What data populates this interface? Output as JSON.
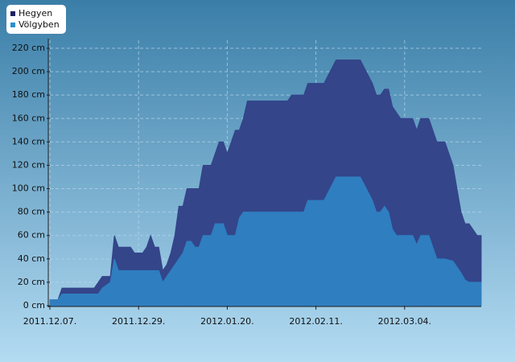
{
  "chart_data": {
    "type": "area",
    "x": [
      "2011-12-07",
      "2011-12-09",
      "2011-12-10",
      "2011-12-18",
      "2011-12-19",
      "2011-12-20",
      "2011-12-22",
      "2011-12-23",
      "2011-12-24",
      "2011-12-27",
      "2011-12-28",
      "2011-12-30",
      "2011-12-31",
      "2012-01-01",
      "2012-01-02",
      "2012-01-03",
      "2012-01-04",
      "2012-01-05",
      "2012-01-06",
      "2012-01-07",
      "2012-01-08",
      "2012-01-09",
      "2012-01-10",
      "2012-01-11",
      "2012-01-12",
      "2012-01-13",
      "2012-01-14",
      "2012-01-16",
      "2012-01-17",
      "2012-01-18",
      "2012-01-19",
      "2012-01-20",
      "2012-01-22",
      "2012-01-23",
      "2012-01-24",
      "2012-01-25",
      "2012-02-04",
      "2012-02-05",
      "2012-02-08",
      "2012-02-09",
      "2012-02-13",
      "2012-02-16",
      "2012-02-22",
      "2012-02-25",
      "2012-02-26",
      "2012-02-27",
      "2012-02-28",
      "2012-02-29",
      "2012-03-01",
      "2012-03-02",
      "2012-03-03",
      "2012-03-06",
      "2012-03-07",
      "2012-03-08",
      "2012-03-10",
      "2012-03-12",
      "2012-03-14",
      "2012-03-16",
      "2012-03-18",
      "2012-03-19",
      "2012-03-20",
      "2012-03-22",
      "2012-03-23"
    ],
    "series": [
      {
        "name": "Hegyen",
        "color": "#1b2160",
        "fill": "#34458a",
        "values": [
          5,
          5,
          15,
          15,
          20,
          25,
          25,
          60,
          50,
          50,
          45,
          45,
          50,
          60,
          50,
          50,
          30,
          35,
          45,
          60,
          85,
          85,
          100,
          100,
          100,
          100,
          120,
          120,
          130,
          140,
          140,
          130,
          150,
          150,
          160,
          175,
          175,
          180,
          180,
          190,
          190,
          210,
          210,
          190,
          180,
          180,
          185,
          185,
          170,
          165,
          160,
          160,
          150,
          160,
          160,
          140,
          140,
          120,
          80,
          70,
          70,
          60,
          60
        ]
      },
      {
        "name": "Völgyben",
        "color": "#2a8fd0",
        "fill": "#2f7ec0",
        "values": [
          5,
          5,
          10,
          10,
          10,
          15,
          20,
          40,
          30,
          30,
          30,
          30,
          30,
          30,
          30,
          30,
          20,
          25,
          30,
          35,
          40,
          45,
          55,
          55,
          50,
          50,
          60,
          60,
          70,
          70,
          70,
          60,
          60,
          75,
          80,
          80,
          80,
          80,
          80,
          90,
          90,
          110,
          110,
          90,
          80,
          80,
          85,
          80,
          65,
          60,
          60,
          60,
          52,
          60,
          60,
          40,
          40,
          38,
          28,
          22,
          20,
          20,
          20
        ]
      }
    ],
    "xlim": [
      "2011-12-07",
      "2012-03-23"
    ],
    "xticks": [
      {
        "value": "2011-12-07",
        "label": "2011.12.07."
      },
      {
        "value": "2011-12-29",
        "label": "2011.12.29."
      },
      {
        "value": "2012-01-20",
        "label": "2012.01.20."
      },
      {
        "value": "2012-02-11",
        "label": "2012.02.11."
      },
      {
        "value": "2012-03-04",
        "label": "2012.03.04."
      }
    ],
    "ylim": [
      0,
      220
    ],
    "yticks": [
      {
        "value": 0,
        "label": "0 cm"
      },
      {
        "value": 20,
        "label": "20 cm"
      },
      {
        "value": 40,
        "label": "40 cm"
      },
      {
        "value": 60,
        "label": "60 cm"
      },
      {
        "value": 80,
        "label": "80 cm"
      },
      {
        "value": 100,
        "label": "100 cm"
      },
      {
        "value": 120,
        "label": "120 cm"
      },
      {
        "value": 140,
        "label": "140 cm"
      },
      {
        "value": 160,
        "label": "160 cm"
      },
      {
        "value": 180,
        "label": "180 cm"
      },
      {
        "value": 200,
        "label": "200 cm"
      },
      {
        "value": 220,
        "label": "220 cm"
      }
    ],
    "grid": true,
    "legend": "top-left"
  }
}
